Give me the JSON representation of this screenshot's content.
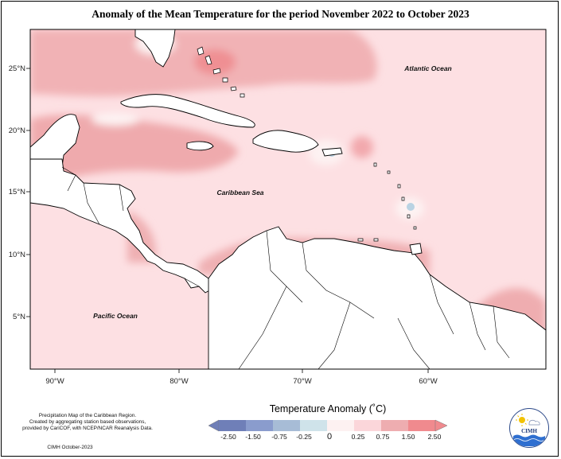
{
  "title": "Anomaly of the Mean Temperature for the period November 2022 to October 2023",
  "map": {
    "region": "Caribbean",
    "background_color": "#fde2e4",
    "lat_ticks": [
      "25°N",
      "20°N",
      "15°N",
      "10°N",
      "5°N"
    ],
    "lon_ticks": [
      "90°W",
      "80°W",
      "70°W",
      "60°W"
    ],
    "ocean_labels": {
      "atlantic": "Atlantic Ocean",
      "caribbean": "Caribbean Sea",
      "pacific": "Pacific Ocean"
    }
  },
  "legend": {
    "title": "Temperature Anomaly (˚C)",
    "tick_labels": [
      "-2.50",
      "-1.50",
      "-0.75",
      "-0.25",
      "0",
      "0.25",
      "0.75",
      "1.50",
      "2.50"
    ],
    "colors": [
      "#6f7fb8",
      "#8a9ccd",
      "#a7bcd6",
      "#cfe3ea",
      "#fdf1f1",
      "#fbd6da",
      "#eeadb0",
      "#f08a8e",
      "#f4b7b9"
    ]
  },
  "credits": {
    "line1": "Precipitation Map of the Caribbean Region.",
    "line2": "Created by aggregating station based observations,",
    "line3": "provided by CariCOF, with NCEP/NCAR Reanalysis Data.",
    "footer": "CIMH October-2023"
  },
  "logo": {
    "text": "CIMH",
    "icon": "sun-cloud-wave-icon"
  }
}
